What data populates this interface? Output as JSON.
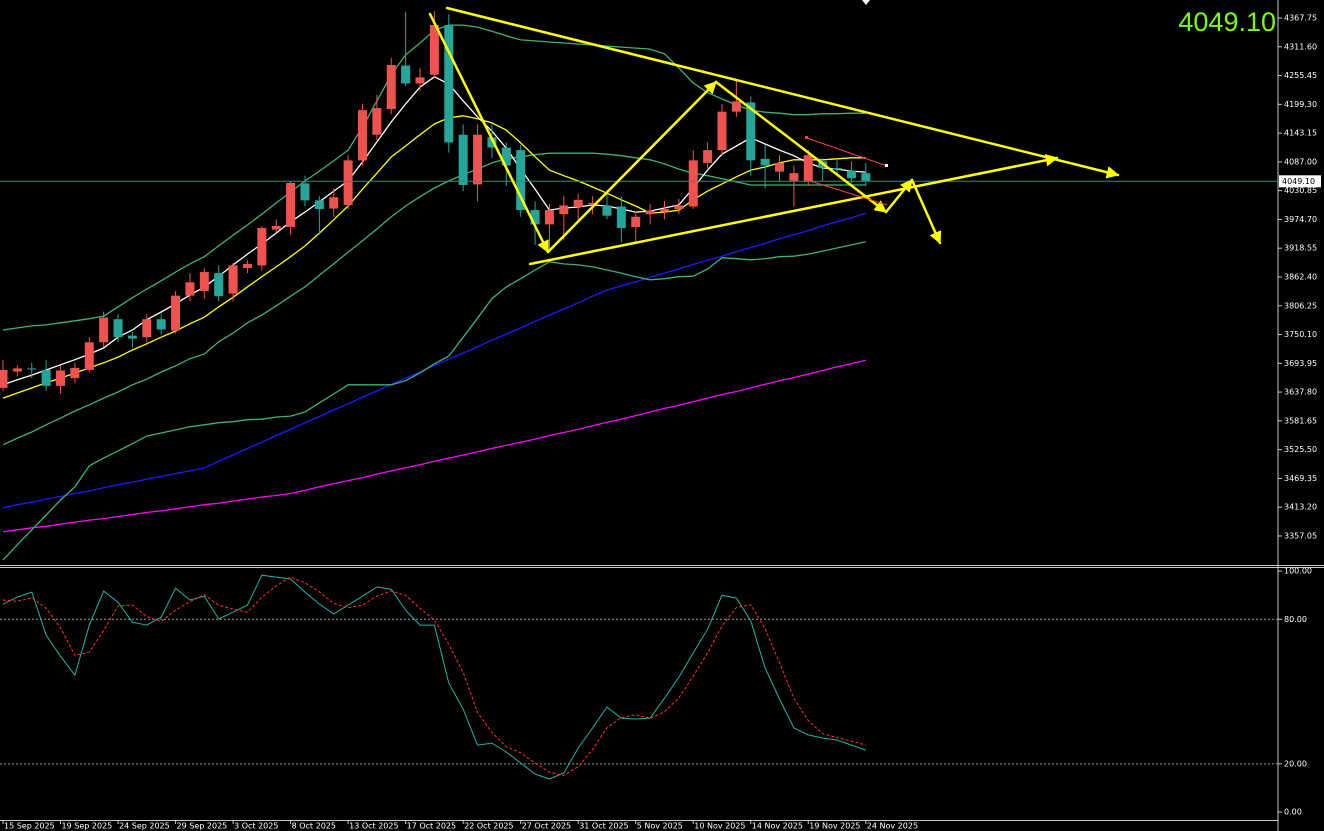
{
  "chart_data": [
    {
      "type": "candlestick",
      "categories": [
        "15 Sep 2025",
        null,
        null,
        null,
        "19 Sep 2025",
        null,
        null,
        null,
        "24 Sep 2025",
        null,
        null,
        null,
        "29 Sep 2025",
        null,
        null,
        null,
        "3 Oct 2025",
        null,
        null,
        null,
        "8 Oct 2025",
        null,
        null,
        null,
        "13 Oct 2025",
        null,
        null,
        null,
        "17 Oct 2025",
        null,
        null,
        null,
        "22 Oct 2025",
        null,
        null,
        null,
        "27 Oct 2025",
        null,
        null,
        null,
        "31 Oct 2025",
        null,
        null,
        null,
        "5 Nov 2025",
        null,
        null,
        null,
        "10 Nov 2025",
        null,
        null,
        null,
        "14 Nov 2025",
        null,
        null,
        null,
        "19 Nov 2025",
        null,
        null,
        null,
        "24 Nov 2025"
      ],
      "open": [
        3646,
        3678,
        3684,
        3681,
        3650,
        3665,
        3681,
        3735,
        3780,
        3748,
        3745,
        3780,
        3758,
        3826,
        3835,
        3870,
        3830,
        3880,
        3885,
        3955,
        3960,
        4045,
        4012,
        3996,
        4003,
        4090,
        4140,
        4190,
        4275,
        4240,
        4257,
        4354,
        4140,
        4043,
        4135,
        4115,
        4110,
        3993,
        3965,
        3985,
        3999,
        4005,
        4002,
        4000,
        3960,
        3985,
        3990,
        3995,
        4000,
        4085,
        4110,
        4185,
        4203,
        4093,
        4068,
        4050,
        4048,
        4088,
        4075,
        4070,
        4065
      ],
      "high": [
        3700,
        3690,
        3695,
        3700,
        3690,
        3695,
        3745,
        3795,
        3790,
        3755,
        3790,
        3790,
        3835,
        3870,
        3880,
        3885,
        3890,
        3895,
        3962,
        3975,
        4050,
        4060,
        4020,
        4035,
        4100,
        4200,
        4218,
        4290,
        4380,
        4270,
        4381,
        4375,
        4160,
        4160,
        4160,
        4125,
        4120,
        4010,
        4005,
        4020,
        4025,
        4020,
        4025,
        4020,
        3990,
        4005,
        4010,
        4015,
        4110,
        4125,
        4200,
        4245,
        4215,
        4120,
        4100,
        4080,
        4110,
        4095,
        4090,
        4088,
        4085
      ],
      "low": [
        3640,
        3668,
        3665,
        3640,
        3635,
        3655,
        3676,
        3725,
        3735,
        3725,
        3735,
        3750,
        3752,
        3815,
        3820,
        3815,
        3815,
        3870,
        3875,
        3950,
        3945,
        4000,
        3945,
        3980,
        3995,
        4080,
        4130,
        4180,
        4235,
        4225,
        4250,
        4105,
        4030,
        4010,
        4095,
        4040,
        3980,
        3925,
        3915,
        3935,
        3970,
        3985,
        3975,
        3930,
        3930,
        3965,
        3975,
        3985,
        3995,
        4075,
        4100,
        4175,
        4060,
        4035,
        4050,
        4000,
        4040,
        4050,
        4060,
        4045,
        4040
      ],
      "close": [
        3681,
        3684,
        3682,
        3650,
        3680,
        3685,
        3735,
        3783,
        3745,
        3742,
        3780,
        3760,
        3826,
        3852,
        3872,
        3825,
        3885,
        3888,
        3958,
        3962,
        4046,
        4012,
        3995,
        4018,
        4090,
        4188,
        4192,
        4276,
        4240,
        4252,
        4354,
        4125,
        4042,
        4140,
        4115,
        4080,
        3993,
        3965,
        3993,
        4002,
        4013,
        4007,
        3982,
        3958,
        3980,
        3992,
        3995,
        4002,
        4090,
        4110,
        4185,
        4205,
        4090,
        4080,
        4085,
        4065,
        4100,
        4075,
        4072,
        4055,
        4049.1
      ],
      "up_color": "#ef5350",
      "down_color": "#26a69a",
      "series": [
        {
          "color": "#ff00ff",
          "values": [
            3365,
            3369,
            3373,
            3376,
            3380,
            3384,
            3388,
            3391,
            3395,
            3399,
            3403,
            3406,
            3410,
            3414,
            3418,
            3421,
            3425,
            3429,
            3433,
            3436,
            3440,
            3446,
            3453,
            3459,
            3465,
            3471,
            3478,
            3484,
            3490,
            3496,
            3503,
            3509,
            3515,
            3521,
            3528,
            3534,
            3540,
            3546,
            3553,
            3559,
            3565,
            3572,
            3579,
            3585,
            3592,
            3599,
            3606,
            3612,
            3619,
            3626,
            3633,
            3639,
            3646,
            3653,
            3660,
            3666,
            3673,
            3680,
            3687,
            3693,
            3700
          ]
        },
        {
          "color": "#1c1cff",
          "values": [
            3412,
            3418,
            3423,
            3429,
            3434,
            3440,
            3445,
            3451,
            3457,
            3462,
            3468,
            3473,
            3479,
            3484,
            3490,
            3503,
            3515,
            3528,
            3540,
            3553,
            3565,
            3578,
            3590,
            3603,
            3615,
            3628,
            3640,
            3653,
            3665,
            3677,
            3690,
            3702,
            3714,
            3726,
            3739,
            3751,
            3763,
            3776,
            3788,
            3800,
            3812,
            3825,
            3837,
            3845,
            3853,
            3862,
            3870,
            3878,
            3887,
            3895,
            3903,
            3912,
            3920,
            3928,
            3937,
            3945,
            3953,
            3962,
            3970,
            3978,
            3987
          ]
        },
        {
          "color": "#3cb371",
          "values": [
            3310,
            3340,
            3369,
            3398,
            3427,
            3453,
            3494,
            3509,
            3523,
            3537,
            3552,
            3558,
            3564,
            3570,
            3574,
            3578,
            3580,
            3584,
            3585,
            3589,
            3591,
            3599,
            3617,
            3634,
            3652,
            3652,
            3652,
            3652,
            3660,
            3675,
            3693,
            3708,
            3745,
            3782,
            3820,
            3843,
            3859,
            3876,
            3892,
            3888,
            3886,
            3882,
            3876,
            3870,
            3863,
            3857,
            3859,
            3863,
            3864,
            3878,
            3900,
            3898,
            3896,
            3898,
            3902,
            3903,
            3907,
            3913,
            3919,
            3925,
            3931
          ]
        },
        {
          "color": "#3cb371",
          "values": [
            3535,
            3548,
            3560,
            3574,
            3587,
            3601,
            3613,
            3626,
            3638,
            3652,
            3663,
            3677,
            3689,
            3703,
            3712,
            3736,
            3753,
            3773,
            3788,
            3806,
            3825,
            3843,
            3866,
            3888,
            3911,
            3933,
            3956,
            3980,
            4001,
            4019,
            4036,
            4050,
            4062,
            4073,
            4085,
            4093,
            4097,
            4101,
            4104,
            4104,
            4104,
            4104,
            4102,
            4099,
            4095,
            4091,
            4083,
            4073,
            4065,
            4060,
            4054,
            4048,
            4042,
            4042,
            4042,
            4042,
            4042,
            4042,
            4042,
            4042,
            4042
          ]
        },
        {
          "color": "#3cb371",
          "values": [
            3759,
            3763,
            3767,
            3769,
            3773,
            3777,
            3781,
            3786,
            3804,
            3822,
            3839,
            3855,
            3872,
            3888,
            3902,
            3923,
            3944,
            3964,
            3985,
            4007,
            4028,
            4050,
            4069,
            4089,
            4110,
            4155,
            4206,
            4257,
            4296,
            4319,
            4344,
            4354,
            4354,
            4350,
            4342,
            4333,
            4325,
            4323,
            4321,
            4319,
            4317,
            4315,
            4313,
            4311,
            4309,
            4307,
            4298,
            4270,
            4241,
            4222,
            4210,
            4198,
            4188,
            4184,
            4182,
            4179,
            4179,
            4181,
            4181,
            4182,
            4182
          ]
        },
        {
          "color": "#ffff00",
          "values": [
            3626,
            3636,
            3646,
            3656,
            3665,
            3675,
            3685,
            3695,
            3706,
            3720,
            3732,
            3745,
            3757,
            3771,
            3784,
            3804,
            3823,
            3843,
            3863,
            3882,
            3902,
            3923,
            3948,
            3974,
            4001,
            4034,
            4065,
            4097,
            4118,
            4140,
            4161,
            4173,
            4177,
            4171,
            4163,
            4149,
            4124,
            4097,
            4071,
            4060,
            4050,
            4038,
            4026,
            4013,
            4001,
            3987,
            3989,
            3993,
            4013,
            4030,
            4044,
            4058,
            4071,
            4077,
            4085,
            4091,
            4091,
            4091,
            4093,
            4095,
            4095
          ]
        },
        {
          "color": "#ffffff",
          "values": [
            3652,
            3662,
            3671,
            3681,
            3691,
            3701,
            3712,
            3724,
            3745,
            3759,
            3779,
            3794,
            3810,
            3827,
            3843,
            3864,
            3886,
            3907,
            3927,
            3948,
            3970,
            3989,
            4009,
            4030,
            4050,
            4087,
            4126,
            4165,
            4200,
            4233,
            4253,
            4239,
            4206,
            4175,
            4147,
            4114,
            4073,
            4034,
            3993,
            3997,
            3999,
            4003,
            4001,
            3995,
            3989,
            3991,
            3997,
            4003,
            4036,
            4071,
            4102,
            4118,
            4134,
            4122,
            4110,
            4099,
            4085,
            4075,
            4073,
            4069,
            4067
          ]
        }
      ],
      "ylim": [
        3300.4,
        4402.9
      ],
      "yticks": [
        {
          "value": 4367.75,
          "label": "4367.75"
        },
        {
          "value": 4311.6,
          "label": "4311.60"
        },
        {
          "value": 4255.45,
          "label": "4255.45"
        },
        {
          "value": 4199.3,
          "label": "4199.30"
        },
        {
          "value": 4143.15,
          "label": "4143.15"
        },
        {
          "value": 4087,
          "label": "4087.00"
        },
        {
          "value": 4030.85,
          "label": "4030.85"
        },
        {
          "value": 3974.7,
          "label": "3974.70"
        },
        {
          "value": 3918.55,
          "label": "3918.55"
        },
        {
          "value": 3862.4,
          "label": "3862.40"
        },
        {
          "value": 3806.25,
          "label": "3806.25"
        },
        {
          "value": 3750.1,
          "label": "3750.10"
        },
        {
          "value": 3693.95,
          "label": "3693.95"
        },
        {
          "value": 3637.8,
          "label": "3637.80"
        },
        {
          "value": 3581.65,
          "label": "3581.65"
        },
        {
          "value": 3525.5,
          "label": "3525.50"
        },
        {
          "value": 3469.35,
          "label": "3469.35"
        },
        {
          "value": 3413.2,
          "label": "3413.20"
        },
        {
          "value": 3357.05,
          "label": "3357.05"
        }
      ],
      "last_price": {
        "value": 4049.1,
        "label": "4049.10"
      }
    },
    {
      "type": "line",
      "series": [
        {
          "color": "#20b2aa",
          "dash": false,
          "values": [
            86.3,
            89.2,
            91.3,
            73.4,
            64.7,
            56.8,
            77.6,
            91.7,
            87.1,
            78.8,
            77.6,
            80.9,
            92.9,
            88.0,
            89.6,
            80.1,
            83.0,
            85.9,
            98.3,
            97.5,
            96.7,
            91.3,
            86.3,
            82.2,
            85.9,
            89.6,
            93.4,
            92.5,
            83.8,
            77.6,
            77.6,
            53.5,
            42.7,
            27.8,
            28.6,
            24.9,
            20.3,
            15.8,
            13.7,
            16.2,
            26.6,
            34.9,
            43.6,
            39.0,
            38.6,
            39.0,
            47.3,
            56.0,
            66.0,
            75.9,
            90.0,
            88.8,
            79.3,
            59.8,
            46.9,
            34.9,
            32.0,
            30.7,
            29.9,
            27.8,
            25.7
          ]
        },
        {
          "color": "#ff3030",
          "dash": true,
          "values": [
            88.0,
            87.5,
            88.9,
            84.6,
            76.5,
            65.0,
            66.4,
            75.4,
            85.5,
            85.9,
            81.2,
            79.1,
            83.8,
            87.3,
            90.2,
            85.9,
            84.2,
            83.0,
            89.1,
            93.9,
            97.5,
            95.2,
            91.4,
            86.6,
            84.8,
            85.9,
            89.6,
            91.8,
            89.9,
            84.6,
            79.7,
            69.6,
            57.9,
            41.3,
            33.0,
            27.1,
            24.6,
            20.3,
            16.6,
            15.2,
            18.8,
            25.9,
            35.0,
            39.2,
            40.4,
            38.9,
            41.6,
            47.4,
            56.4,
            66.0,
            77.3,
            84.9,
            86.0,
            76.0,
            62.0,
            47.2,
            37.9,
            32.5,
            30.9,
            29.5,
            27.8
          ]
        }
      ],
      "ylim": [
        -3.3,
        101.7
      ],
      "yticks": [
        {
          "value": 100,
          "label": "100.00"
        },
        {
          "value": 80,
          "label": "80.00"
        },
        {
          "value": 20,
          "label": "20.00"
        },
        {
          "value": 0,
          "label": "0.00"
        }
      ],
      "levels": [
        80,
        20
      ]
    }
  ]
}
